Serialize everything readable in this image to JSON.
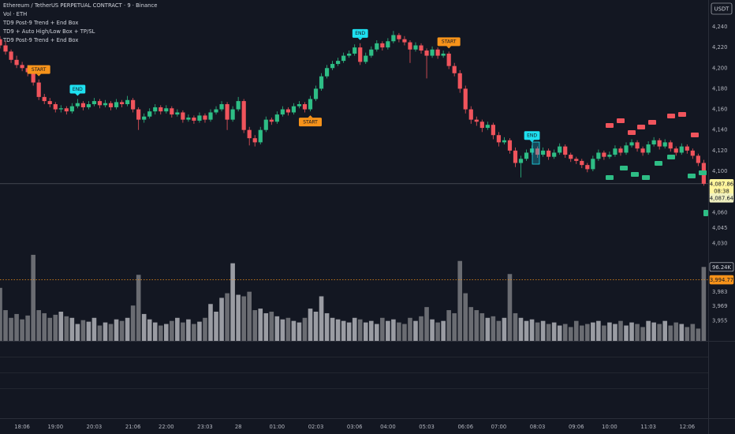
{
  "chart_data": {
    "type": "candlestick",
    "legend": [
      "Ethereum / TetherUS PERPETUAL CONTRACT · 9 · Binance",
      "Vol · ETH",
      "TD9 Post-9 Trend + End Box",
      "TD9 + Auto High/Low Box + TP/SL",
      "TD9 Post-9 Trend + End Box"
    ],
    "currency": "USDT",
    "up_color": "#2ebd85",
    "down_color": "#f0545c",
    "volume_up_color": "#9a9ca3",
    "volume_down_color": "#6a6c72",
    "ylim": [
      3935.5,
      4266
    ],
    "xlim": [
      0,
      127.8
    ],
    "vlim": [
      0,
      115000
    ],
    "yticks": [
      {
        "value": 4240,
        "label": "4,240"
      },
      {
        "value": 4220,
        "label": "4,220"
      },
      {
        "value": 4200,
        "label": "4,200"
      },
      {
        "value": 4180,
        "label": "4,180"
      },
      {
        "value": 4160,
        "label": "4,160"
      },
      {
        "value": 4140,
        "label": "4,140"
      },
      {
        "value": 4120,
        "label": "4,120"
      },
      {
        "value": 4100,
        "label": "4,100"
      },
      {
        "value": 4060,
        "label": "4,060"
      },
      {
        "value": 4045,
        "label": "4,045"
      },
      {
        "value": 4030,
        "label": "4,030"
      },
      {
        "value": 3983,
        "label": "3,983"
      },
      {
        "value": 3969,
        "label": "3,969"
      },
      {
        "value": 3955,
        "label": "3,955"
      }
    ],
    "xticks": [
      {
        "value": 4,
        "label": "18:06"
      },
      {
        "value": 10,
        "label": "19:00"
      },
      {
        "value": 17,
        "label": "20:03"
      },
      {
        "value": 24,
        "label": "21:06"
      },
      {
        "value": 30,
        "label": "22:00"
      },
      {
        "value": 37,
        "label": "23:03"
      },
      {
        "value": 43,
        "label": "28"
      },
      {
        "value": 50,
        "label": "01:00"
      },
      {
        "value": 57,
        "label": "02:03"
      },
      {
        "value": 64,
        "label": "03:06"
      },
      {
        "value": 70,
        "label": "04:00"
      },
      {
        "value": 77,
        "label": "05:03"
      },
      {
        "value": 84,
        "label": "06:06"
      },
      {
        "value": 90,
        "label": "07:00"
      },
      {
        "value": 97,
        "label": "08:03"
      },
      {
        "value": 104,
        "label": "09:06"
      },
      {
        "value": 110,
        "label": "10:00"
      },
      {
        "value": 117,
        "label": "11:03"
      },
      {
        "value": 124,
        "label": "12:06"
      }
    ],
    "candles": [
      [
        4228,
        4231,
        4219,
        4222
      ],
      [
        4222,
        4226,
        4213,
        4216
      ],
      [
        4216,
        4218,
        4205,
        4208
      ],
      [
        4208,
        4212,
        4200,
        4203
      ],
      [
        4203,
        4206,
        4197,
        4200
      ],
      [
        4200,
        4203,
        4192,
        4196
      ],
      [
        4196,
        4198,
        4183,
        4186
      ],
      [
        4186,
        4189,
        4169,
        4172
      ],
      [
        4172,
        4175,
        4165,
        4168
      ],
      [
        4168,
        4171,
        4162,
        4165
      ],
      [
        4165,
        4167,
        4157,
        4160
      ],
      [
        4160,
        4164,
        4157,
        4161
      ],
      [
        4161,
        4163,
        4155,
        4158
      ],
      [
        4158,
        4166,
        4156,
        4163
      ],
      [
        4163,
        4170,
        4161,
        4166
      ],
      [
        4166,
        4168,
        4159,
        4162
      ],
      [
        4162,
        4168,
        4160,
        4165
      ],
      [
        4165,
        4171,
        4163,
        4168
      ],
      [
        4168,
        4170,
        4161,
        4164
      ],
      [
        4164,
        4169,
        4162,
        4166
      ],
      [
        4166,
        4168,
        4159,
        4162
      ],
      [
        4162,
        4170,
        4160,
        4167
      ],
      [
        4167,
        4169,
        4162,
        4165
      ],
      [
        4165,
        4173,
        4163,
        4169
      ],
      [
        4169,
        4171,
        4157,
        4160
      ],
      [
        4160,
        4162,
        4140,
        4150
      ],
      [
        4150,
        4156,
        4147,
        4153
      ],
      [
        4153,
        4161,
        4151,
        4158
      ],
      [
        4158,
        4165,
        4155,
        4162
      ],
      [
        4162,
        4164,
        4155,
        4158
      ],
      [
        4158,
        4164,
        4156,
        4161
      ],
      [
        4161,
        4163,
        4152,
        4155
      ],
      [
        4155,
        4160,
        4153,
        4157
      ],
      [
        4157,
        4159,
        4147,
        4150
      ],
      [
        4150,
        4155,
        4148,
        4152
      ],
      [
        4152,
        4154,
        4146,
        4149
      ],
      [
        4149,
        4157,
        4147,
        4154
      ],
      [
        4154,
        4156,
        4147,
        4150
      ],
      [
        4150,
        4160,
        4148,
        4157
      ],
      [
        4157,
        4163,
        4155,
        4160
      ],
      [
        4160,
        4168,
        4158,
        4165
      ],
      [
        4165,
        4167,
        4140,
        4150
      ],
      [
        4150,
        4163,
        4148,
        4160
      ],
      [
        4160,
        4172,
        4158,
        4168
      ],
      [
        4168,
        4170,
        4137,
        4140
      ],
      [
        4140,
        4143,
        4125,
        4132
      ],
      [
        4132,
        4135,
        4124,
        4128
      ],
      [
        4128,
        4143,
        4126,
        4140
      ],
      [
        4140,
        4153,
        4138,
        4150
      ],
      [
        4150,
        4152,
        4145,
        4148
      ],
      [
        4148,
        4158,
        4146,
        4155
      ],
      [
        4155,
        4163,
        4153,
        4160
      ],
      [
        4160,
        4162,
        4154,
        4157
      ],
      [
        4157,
        4166,
        4155,
        4163
      ],
      [
        4163,
        4168,
        4161,
        4165
      ],
      [
        4165,
        4167,
        4157,
        4160
      ],
      [
        4160,
        4173,
        4158,
        4170
      ],
      [
        4170,
        4183,
        4168,
        4180
      ],
      [
        4180,
        4195,
        4178,
        4192
      ],
      [
        4192,
        4203,
        4190,
        4200
      ],
      [
        4200,
        4207,
        4198,
        4204
      ],
      [
        4204,
        4210,
        4202,
        4207
      ],
      [
        4207,
        4215,
        4205,
        4212
      ],
      [
        4212,
        4217,
        4210,
        4214
      ],
      [
        4214,
        4223,
        4212,
        4220
      ],
      [
        4220,
        4224,
        4203,
        4206
      ],
      [
        4206,
        4215,
        4204,
        4212
      ],
      [
        4212,
        4221,
        4210,
        4218
      ],
      [
        4218,
        4227,
        4216,
        4224
      ],
      [
        4224,
        4226,
        4217,
        4220
      ],
      [
        4220,
        4229,
        4218,
        4226
      ],
      [
        4226,
        4236,
        4224,
        4232
      ],
      [
        4232,
        4234,
        4225,
        4228
      ],
      [
        4228,
        4231,
        4222,
        4225
      ],
      [
        4225,
        4227,
        4205,
        4218
      ],
      [
        4218,
        4225,
        4216,
        4222
      ],
      [
        4222,
        4224,
        4214,
        4217
      ],
      [
        4217,
        4219,
        4190,
        4212
      ],
      [
        4212,
        4221,
        4210,
        4218
      ],
      [
        4218,
        4220,
        4209,
        4212
      ],
      [
        4212,
        4217,
        4210,
        4214
      ],
      [
        4214,
        4216,
        4199,
        4202
      ],
      [
        4202,
        4205,
        4192,
        4195
      ],
      [
        4195,
        4198,
        4176,
        4180
      ],
      [
        4180,
        4183,
        4156,
        4160
      ],
      [
        4160,
        4163,
        4146,
        4150
      ],
      [
        4150,
        4153,
        4144,
        4148
      ],
      [
        4148,
        4150,
        4138,
        4142
      ],
      [
        4142,
        4148,
        4140,
        4145
      ],
      [
        4145,
        4147,
        4131,
        4135
      ],
      [
        4135,
        4138,
        4124,
        4128
      ],
      [
        4128,
        4133,
        4126,
        4130
      ],
      [
        4130,
        4132,
        4117,
        4120
      ],
      [
        4120,
        4123,
        4104,
        4108
      ],
      [
        4108,
        4115,
        4094,
        4112
      ],
      [
        4112,
        4121,
        4110,
        4118
      ],
      [
        4118,
        4125,
        4116,
        4122
      ],
      [
        4122,
        4124,
        4113,
        4116
      ],
      [
        4116,
        4123,
        4114,
        4120
      ],
      [
        4120,
        4122,
        4111,
        4114
      ],
      [
        4114,
        4121,
        4112,
        4118
      ],
      [
        4118,
        4127,
        4116,
        4124
      ],
      [
        4124,
        4126,
        4113,
        4116
      ],
      [
        4116,
        4118,
        4109,
        4112
      ],
      [
        4112,
        4114,
        4107,
        4110
      ],
      [
        4110,
        4112,
        4103,
        4106
      ],
      [
        4106,
        4108,
        4099,
        4102
      ],
      [
        4102,
        4115,
        4100,
        4112
      ],
      [
        4112,
        4121,
        4110,
        4118
      ],
      [
        4118,
        4120,
        4111,
        4114
      ],
      [
        4114,
        4119,
        4112,
        4116
      ],
      [
        4116,
        4125,
        4114,
        4122
      ],
      [
        4122,
        4124,
        4115,
        4118
      ],
      [
        4118,
        4128,
        4116,
        4125
      ],
      [
        4125,
        4131,
        4123,
        4128
      ],
      [
        4128,
        4130,
        4119,
        4122
      ],
      [
        4122,
        4124,
        4115,
        4118
      ],
      [
        4118,
        4129,
        4116,
        4126
      ],
      [
        4126,
        4133,
        4124,
        4130
      ],
      [
        4130,
        4132,
        4121,
        4124
      ],
      [
        4124,
        4131,
        4122,
        4128
      ],
      [
        4128,
        4130,
        4119,
        4122
      ],
      [
        4122,
        4124,
        4115,
        4118
      ],
      [
        4118,
        4127,
        4116,
        4124
      ],
      [
        4124,
        4126,
        4117,
        4120
      ],
      [
        4120,
        4122,
        4112,
        4115
      ],
      [
        4115,
        4117,
        4105,
        4108
      ],
      [
        4108,
        4111,
        4086,
        4087.86
      ]
    ],
    "volumes": [
      69000,
      40000,
      30000,
      35000,
      28000,
      33000,
      112000,
      40000,
      36000,
      30000,
      34000,
      38000,
      32000,
      30000,
      22000,
      27000,
      25000,
      30000,
      20000,
      24000,
      22000,
      28000,
      26000,
      30000,
      46000,
      86000,
      35000,
      28000,
      24000,
      20000,
      22000,
      26000,
      30000,
      24000,
      28000,
      22000,
      25000,
      30000,
      48000,
      38000,
      56000,
      62000,
      101000,
      60000,
      58000,
      64000,
      40000,
      42000,
      36000,
      38000,
      32000,
      28000,
      30000,
      26000,
      24000,
      30000,
      42000,
      38000,
      58000,
      36000,
      30000,
      28000,
      26000,
      24000,
      30000,
      28000,
      24000,
      26000,
      22000,
      30000,
      26000,
      28000,
      24000,
      22000,
      30000,
      26000,
      32000,
      44000,
      28000,
      24000,
      26000,
      40000,
      36000,
      104000,
      62000,
      44000,
      40000,
      36000,
      30000,
      32000,
      26000,
      30000,
      87000,
      36000,
      30000,
      26000,
      28000,
      24000,
      26000,
      22000,
      24000,
      20000,
      22000,
      18000,
      26000,
      20000,
      22000,
      24000,
      26000,
      20000,
      24000,
      22000,
      26000,
      20000,
      24000,
      22000,
      18000,
      26000,
      24000,
      22000,
      26000,
      20000,
      24000,
      22000,
      18000,
      22000,
      16000,
      96240
    ],
    "markers": [
      {
        "label": "START",
        "index": 7,
        "position": "above",
        "color": "#f7931a"
      },
      {
        "label": "END",
        "index": 14,
        "position": "above",
        "color": "#1ee0f0"
      },
      {
        "label": "START",
        "index": 56,
        "position": "below",
        "color": "#f7931a"
      },
      {
        "label": "END",
        "index": 65,
        "position": "above",
        "color": "#1ee0f0"
      },
      {
        "label": "START",
        "index": 81,
        "position": "above",
        "color": "#f7931a"
      },
      {
        "label": "END",
        "index": 96,
        "position": "above",
        "color": "#1ee0f0"
      }
    ],
    "last_price": {
      "value": 4087.86,
      "label": "4,087.86"
    },
    "countdown": "08:38",
    "second_price": {
      "value": 4087.64,
      "label": "4,087.64"
    },
    "last_volume": {
      "value": 96240,
      "label": "96.24K"
    },
    "ref_line": {
      "value": 3994.77,
      "label": "3,994.77",
      "color": "#f7931a"
    }
  }
}
